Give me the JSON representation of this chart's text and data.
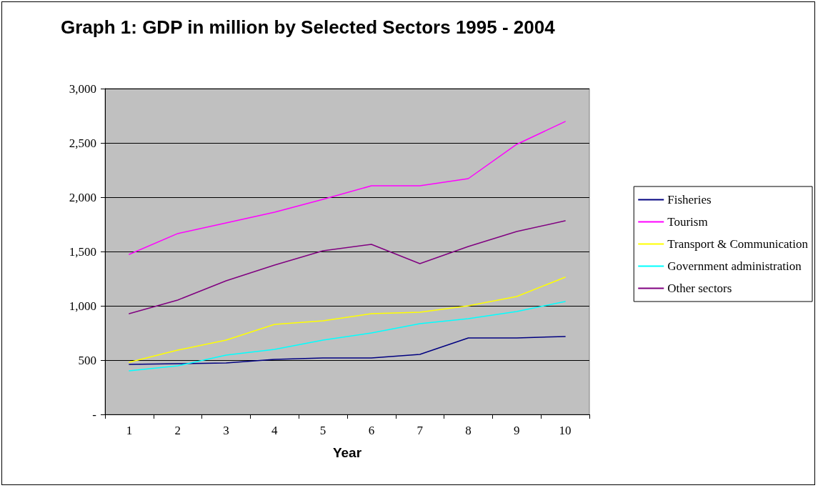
{
  "chart_data": {
    "type": "line",
    "title": "Graph 1: GDP in million by Selected Sectors 1995 - 2004",
    "xlabel": "Year",
    "categories": [
      "1",
      "2",
      "3",
      "4",
      "5",
      "6",
      "7",
      "8",
      "9",
      "10"
    ],
    "series": [
      {
        "name": "Fisheries",
        "color": "#000080",
        "values": [
          460,
          467,
          474,
          507,
          520,
          520,
          553,
          704,
          704,
          717
        ]
      },
      {
        "name": "Tourism",
        "color": "#ff00ff",
        "values": [
          1474,
          1665,
          1763,
          1862,
          1980,
          2105,
          2105,
          2171,
          2487,
          2697
        ]
      },
      {
        "name": "Transport & Communication",
        "color": "#ffff00",
        "values": [
          480,
          592,
          684,
          829,
          862,
          928,
          941,
          1000,
          1086,
          1263
        ]
      },
      {
        "name": "Government administration",
        "color": "#00ffff",
        "values": [
          401,
          447,
          546,
          599,
          684,
          750,
          836,
          882,
          947,
          1040
        ]
      },
      {
        "name": "Other sectors",
        "color": "#800080",
        "values": [
          928,
          1053,
          1230,
          1375,
          1507,
          1566,
          1388,
          1546,
          1684,
          1783
        ]
      }
    ],
    "ylim": [
      0,
      3000
    ],
    "yticks": [
      {
        "value": 0,
        "label": "-"
      },
      {
        "value": 500,
        "label": "500"
      },
      {
        "value": 1000,
        "label": "1,000"
      },
      {
        "value": 1500,
        "label": "1,500"
      },
      {
        "value": 2000,
        "label": "2,000"
      },
      {
        "value": 2500,
        "label": "2,500"
      },
      {
        "value": 3000,
        "label": "3,000"
      }
    ],
    "grid": "y",
    "legend": "right",
    "marker": "none",
    "line_style": "solid"
  }
}
